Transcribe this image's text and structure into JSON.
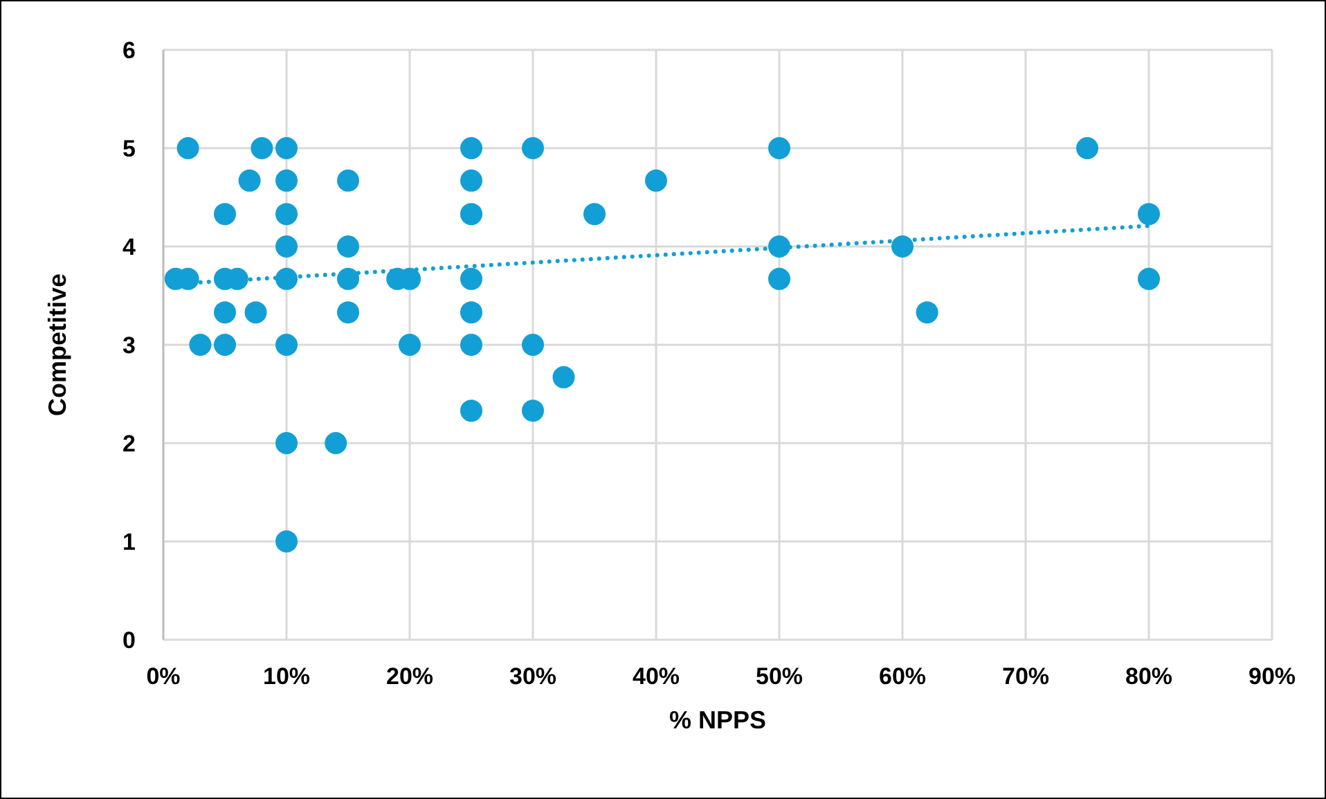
{
  "chart_data": {
    "type": "scatter",
    "xlabel": "% NPPS",
    "ylabel": "Competitive",
    "xlim": [
      0,
      90
    ],
    "ylim": [
      0,
      6
    ],
    "xticks": [
      {
        "value": 0,
        "label": "0%"
      },
      {
        "value": 10,
        "label": "10%"
      },
      {
        "value": 20,
        "label": "20%"
      },
      {
        "value": 30,
        "label": "30%"
      },
      {
        "value": 40,
        "label": "40%"
      },
      {
        "value": 50,
        "label": "50%"
      },
      {
        "value": 60,
        "label": "60%"
      },
      {
        "value": 70,
        "label": "70%"
      },
      {
        "value": 80,
        "label": "80%"
      },
      {
        "value": 90,
        "label": "90%"
      }
    ],
    "yticks": [
      0,
      1,
      2,
      3,
      4,
      5,
      6
    ],
    "grid": true,
    "legend": false,
    "marker": "circle",
    "series": [
      {
        "color": "#129fd5",
        "x": [
          2,
          8,
          10,
          25,
          30,
          50,
          75,
          7,
          10,
          15,
          25,
          40,
          5,
          10,
          25,
          35,
          80,
          10,
          15,
          50,
          60,
          1,
          2,
          5,
          6,
          10,
          15,
          19,
          20,
          25,
          50,
          80,
          5,
          7.5,
          15,
          25,
          62,
          3,
          5,
          10,
          20,
          25,
          30,
          32.5,
          25,
          30,
          10,
          14,
          10
        ],
        "values": [
          5,
          5,
          5,
          5,
          5,
          5,
          5,
          4.67,
          4.67,
          4.67,
          4.67,
          4.67,
          4.33,
          4.33,
          4.33,
          4.33,
          4.33,
          4,
          4,
          4,
          4,
          3.67,
          3.67,
          3.67,
          3.67,
          3.67,
          3.67,
          3.67,
          3.67,
          3.67,
          3.67,
          3.67,
          3.33,
          3.33,
          3.33,
          3.33,
          3.33,
          3,
          3,
          3,
          3,
          3,
          3,
          2.67,
          2.33,
          2.33,
          2,
          2,
          1
        ]
      },
      {
        "type": "line",
        "color": "#129fd5",
        "marker": "none",
        "line_style": "dotted",
        "x": [
          1,
          80
        ],
        "values": [
          3.62,
          4.21
        ]
      }
    ]
  }
}
